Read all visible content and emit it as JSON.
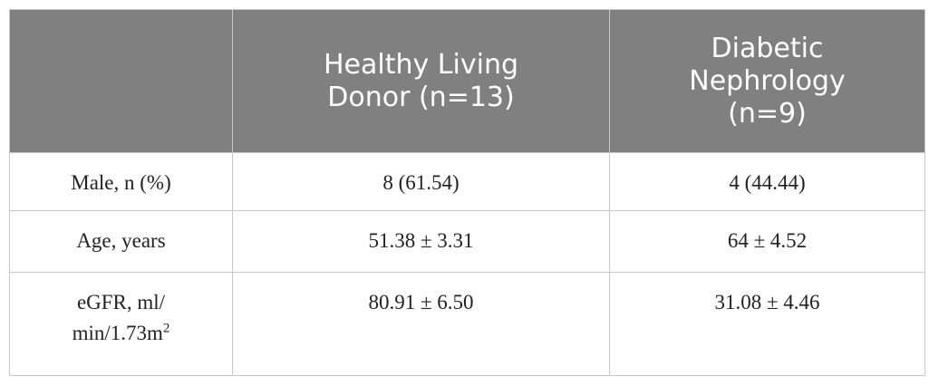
{
  "table": {
    "header": [
      "",
      [
        "Healthy Living",
        "Donor (n=13)"
      ],
      [
        "Diabetic",
        "Nephrology",
        "(n=9)"
      ]
    ],
    "rows": [
      [
        [
          "Male, n (%)"
        ],
        "8 (61.54)",
        "4 (44.44)"
      ],
      [
        [
          "Age, years"
        ],
        "51.38 ± 3.31",
        "64 ± 4.52"
      ],
      [
        [
          "eGFR, ml/",
          "min/1.73m"
        ],
        "80.91 ± 6.50",
        "31.08 ± 4.46"
      ]
    ],
    "superscript": "2"
  }
}
